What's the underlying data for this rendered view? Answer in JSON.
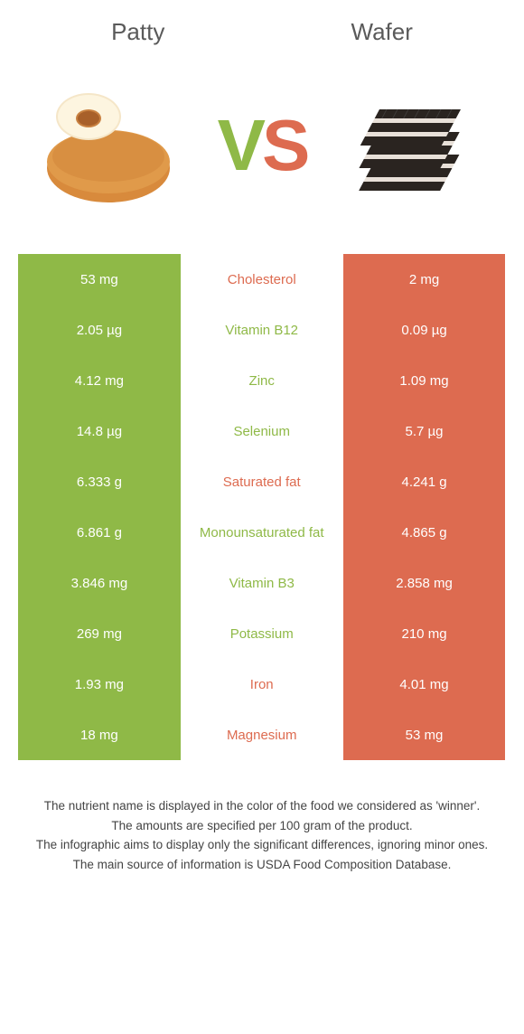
{
  "header": {
    "left_title": "Patty",
    "right_title": "Wafer",
    "vs_v": "V",
    "vs_s": "S"
  },
  "colors": {
    "green": "#8fb947",
    "orange": "#dd6b50",
    "text_gray": "#5a5a5a",
    "footer_text": "#444444"
  },
  "rows": [
    {
      "left": "53 mg",
      "label": "Cholesterol",
      "right": "2 mg",
      "winner": "orange"
    },
    {
      "left": "2.05 µg",
      "label": "Vitamin B12",
      "right": "0.09 µg",
      "winner": "green"
    },
    {
      "left": "4.12 mg",
      "label": "Zinc",
      "right": "1.09 mg",
      "winner": "green"
    },
    {
      "left": "14.8 µg",
      "label": "Selenium",
      "right": "5.7 µg",
      "winner": "green"
    },
    {
      "left": "6.333 g",
      "label": "Saturated fat",
      "right": "4.241 g",
      "winner": "orange"
    },
    {
      "left": "6.861 g",
      "label": "Monounsaturated fat",
      "right": "4.865 g",
      "winner": "green"
    },
    {
      "left": "3.846 mg",
      "label": "Vitamin B3",
      "right": "2.858 mg",
      "winner": "green"
    },
    {
      "left": "269 mg",
      "label": "Potassium",
      "right": "210 mg",
      "winner": "green"
    },
    {
      "left": "1.93 mg",
      "label": "Iron",
      "right": "4.01 mg",
      "winner": "orange"
    },
    {
      "left": "18 mg",
      "label": "Magnesium",
      "right": "53 mg",
      "winner": "orange"
    }
  ],
  "footer": {
    "line1": "The nutrient name is displayed in the color of the food we considered as 'winner'.",
    "line2": "The amounts are specified per 100 gram of the product.",
    "line3": "The infographic aims to display only the significant differences, ignoring minor ones.",
    "line4": "The main source of information is USDA Food Composition Database."
  }
}
